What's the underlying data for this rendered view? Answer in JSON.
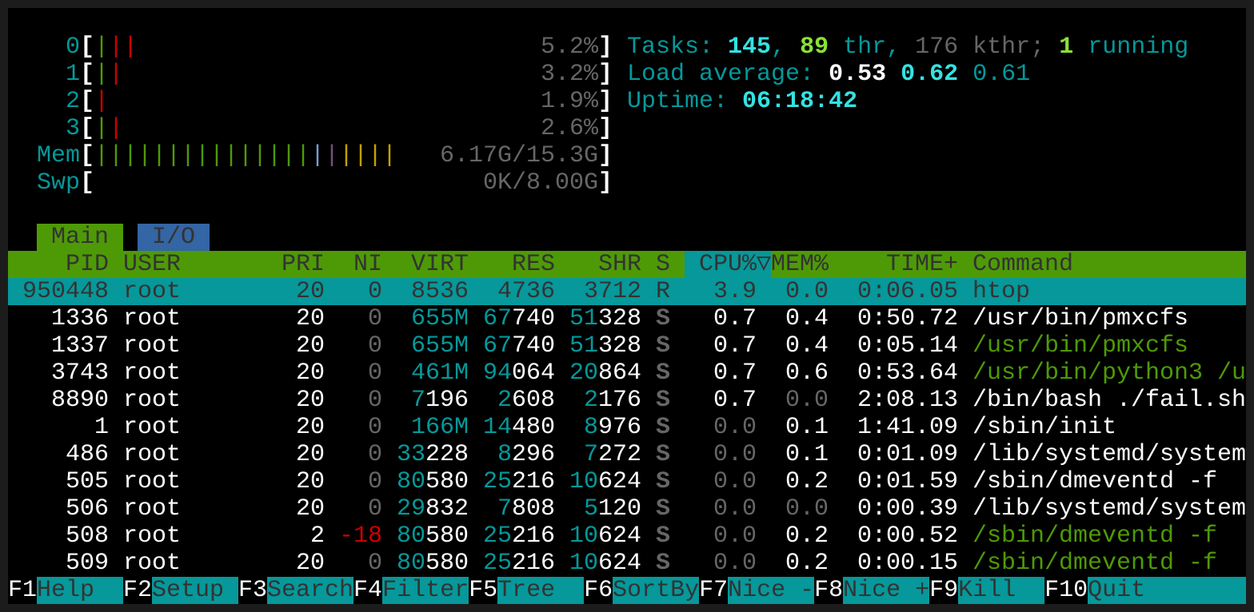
{
  "meters": {
    "cpus": [
      {
        "label": "0",
        "bars": [
          "#4e9a06",
          "#cc0000",
          "#cc0000"
        ],
        "value": "5.2%"
      },
      {
        "label": "1",
        "bars": [
          "#4e9a06",
          "#cc0000"
        ],
        "value": "3.2%"
      },
      {
        "label": "2",
        "bars": [
          "#cc0000"
        ],
        "value": "1.9%"
      },
      {
        "label": "3",
        "bars": [
          "#4e9a06",
          "#cc0000"
        ],
        "value": "2.6%"
      }
    ],
    "mem": {
      "label": "Mem",
      "bars": [
        "#4e9a06",
        "#4e9a06",
        "#4e9a06",
        "#4e9a06",
        "#4e9a06",
        "#4e9a06",
        "#4e9a06",
        "#4e9a06",
        "#4e9a06",
        "#4e9a06",
        "#4e9a06",
        "#4e9a06",
        "#4e9a06",
        "#4e9a06",
        "#4e9a06",
        "#729fcf",
        "#75507b",
        "#c4a000",
        "#c4a000",
        "#c4a000",
        "#c4a000"
      ],
      "value": "6.17G/15.3G"
    },
    "swp": {
      "label": "Swp",
      "bars": [],
      "value": "0K/8.00G"
    }
  },
  "stats": {
    "tasks_label": "Tasks:",
    "tasks": "145",
    "threads": "89",
    "thr_label": "thr,",
    "kthreads": "176 kthr;",
    "running": "1",
    "running_label": "running",
    "load_label": "Load average:",
    "load1": "0.53",
    "load5": "0.62",
    "load15": "0.61",
    "uptime_label": "Uptime:",
    "uptime": "06:18:42"
  },
  "tabs": [
    {
      "label": "Main",
      "active": true
    },
    {
      "label": "I/O",
      "active": false
    }
  ],
  "columns": {
    "pid": "PID",
    "user": "USER",
    "pri": "PRI",
    "ni": "NI",
    "virt": "VIRT",
    "res": "RES",
    "shr": "SHR",
    "s": "S",
    "cpu": "CPU%",
    "sort_indicator": "▽",
    "mem": "MEM%",
    "time": "TIME+",
    "command": "Command"
  },
  "processes": [
    {
      "pid": "950448",
      "user": "root",
      "pri": "20",
      "ni": "0",
      "virt": "8536",
      "res": "4736",
      "shr": "3712",
      "s": "R",
      "cpu": "3.9",
      "mem": "0.0",
      "time": "0:06.05",
      "command": "htop",
      "selected": true,
      "thread": false
    },
    {
      "pid": "1336",
      "user": "root",
      "pri": "20",
      "ni": "0",
      "virt": "655M",
      "res": "67740",
      "shr": "51328",
      "s": "S",
      "cpu": "0.7",
      "mem": "0.4",
      "time": "0:50.72",
      "command": "/usr/bin/pmxcfs",
      "thread": false
    },
    {
      "pid": "1337",
      "user": "root",
      "pri": "20",
      "ni": "0",
      "virt": "655M",
      "res": "67740",
      "shr": "51328",
      "s": "S",
      "cpu": "0.7",
      "mem": "0.4",
      "time": "0:05.14",
      "command": "/usr/bin/pmxcfs",
      "thread": true
    },
    {
      "pid": "3743",
      "user": "root",
      "pri": "20",
      "ni": "0",
      "virt": "461M",
      "res": "94064",
      "shr": "20864",
      "s": "S",
      "cpu": "0.7",
      "mem": "0.6",
      "time": "0:53.64",
      "command": "/usr/bin/python3 /u",
      "thread": true
    },
    {
      "pid": "8890",
      "user": "root",
      "pri": "20",
      "ni": "0",
      "virt": "7196",
      "res": "2608",
      "shr": "2176",
      "s": "S",
      "cpu": "0.7",
      "mem": "0.0",
      "time": "2:08.13",
      "command": "/bin/bash ./fail.sh",
      "thread": false
    },
    {
      "pid": "1",
      "user": "root",
      "pri": "20",
      "ni": "0",
      "virt": "166M",
      "res": "14480",
      "shr": "8976",
      "s": "S",
      "cpu": "0.0",
      "mem": "0.1",
      "time": "1:41.09",
      "command": "/sbin/init",
      "thread": false
    },
    {
      "pid": "486",
      "user": "root",
      "pri": "20",
      "ni": "0",
      "virt": "33228",
      "res": "8296",
      "shr": "7272",
      "s": "S",
      "cpu": "0.0",
      "mem": "0.1",
      "time": "0:01.09",
      "command": "/lib/systemd/system",
      "thread": false
    },
    {
      "pid": "505",
      "user": "root",
      "pri": "20",
      "ni": "0",
      "virt": "80580",
      "res": "25216",
      "shr": "10624",
      "s": "S",
      "cpu": "0.0",
      "mem": "0.2",
      "time": "0:01.59",
      "command": "/sbin/dmeventd -f",
      "thread": false
    },
    {
      "pid": "506",
      "user": "root",
      "pri": "20",
      "ni": "0",
      "virt": "29832",
      "res": "7808",
      "shr": "5120",
      "s": "S",
      "cpu": "0.0",
      "mem": "0.0",
      "time": "0:00.39",
      "command": "/lib/systemd/system",
      "thread": false
    },
    {
      "pid": "508",
      "user": "root",
      "pri": "2",
      "ni": "-18",
      "virt": "80580",
      "res": "25216",
      "shr": "10624",
      "s": "S",
      "cpu": "0.0",
      "mem": "0.2",
      "time": "0:00.52",
      "command": "/sbin/dmeventd -f",
      "thread": true
    },
    {
      "pid": "509",
      "user": "root",
      "pri": "20",
      "ni": "0",
      "virt": "80580",
      "res": "25216",
      "shr": "10624",
      "s": "S",
      "cpu": "0.0",
      "mem": "0.2",
      "time": "0:00.15",
      "command": "/sbin/dmeventd -f",
      "thread": true
    }
  ],
  "footer": [
    {
      "key": "F1",
      "label": "Help"
    },
    {
      "key": "F2",
      "label": "Setup"
    },
    {
      "key": "F3",
      "label": "Search"
    },
    {
      "key": "F4",
      "label": "Filter"
    },
    {
      "key": "F5",
      "label": "Tree"
    },
    {
      "key": "F6",
      "label": "SortBy"
    },
    {
      "key": "F7",
      "label": "Nice -"
    },
    {
      "key": "F8",
      "label": "Nice +"
    },
    {
      "key": "F9",
      "label": "Kill"
    },
    {
      "key": "F10",
      "label": "Quit"
    }
  ],
  "colors": {
    "cyan": "#06989a",
    "green": "#4e9a06",
    "blue": "#3465a4",
    "red": "#cc0000"
  }
}
